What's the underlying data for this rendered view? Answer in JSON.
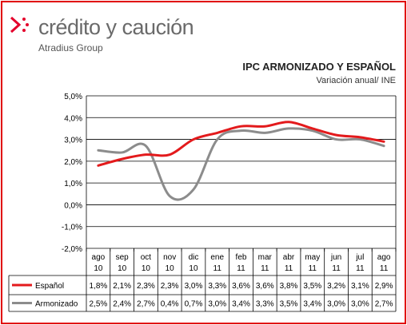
{
  "brand": {
    "name": "crédito y caución",
    "group": "Atradius Group",
    "color": "#e4002b"
  },
  "chart_data": {
    "type": "line",
    "title": "IPC ARMONIZADO Y ESPAÑOL",
    "subtitle": "Variación anual/ INE",
    "categories": [
      [
        "ago",
        "10"
      ],
      [
        "sep",
        "10"
      ],
      [
        "oct",
        "10"
      ],
      [
        "nov",
        "10"
      ],
      [
        "dic",
        "10"
      ],
      [
        "ene",
        "11"
      ],
      [
        "feb",
        "11"
      ],
      [
        "mar",
        "11"
      ],
      [
        "abr",
        "11"
      ],
      [
        "may",
        "11"
      ],
      [
        "jun",
        "11"
      ],
      [
        "jul",
        "11"
      ],
      [
        "ago",
        "11"
      ]
    ],
    "ylim": [
      -2,
      5
    ],
    "yticks": [
      -2,
      -1,
      0,
      1,
      2,
      3,
      4,
      5
    ],
    "ytick_labels": [
      "-2,0%",
      "-1,0%",
      "0,0%",
      "1,0%",
      "2,0%",
      "3,0%",
      "4,0%",
      "5,0%"
    ],
    "grid": true,
    "legend": "table-below",
    "series": [
      {
        "name": "Español",
        "color": "#e31a1c",
        "values": [
          1.8,
          2.1,
          2.3,
          2.3,
          3.0,
          3.3,
          3.6,
          3.6,
          3.8,
          3.5,
          3.2,
          3.1,
          2.9
        ],
        "labels": [
          "1,8%",
          "2,1%",
          "2,3%",
          "2,3%",
          "3,0%",
          "3,3%",
          "3,6%",
          "3,6%",
          "3,8%",
          "3,5%",
          "3,2%",
          "3,1%",
          "2,9%"
        ]
      },
      {
        "name": "Armonizado",
        "color": "#8c8c8c",
        "values": [
          2.5,
          2.4,
          2.7,
          0.4,
          0.7,
          3.0,
          3.4,
          3.3,
          3.5,
          3.4,
          3.0,
          3.0,
          2.7
        ],
        "labels": [
          "2,5%",
          "2,4%",
          "2,7%",
          "0,4%",
          "0,7%",
          "3,0%",
          "3,4%",
          "3,3%",
          "3,5%",
          "3,4%",
          "3,0%",
          "3,0%",
          "2,7%"
        ]
      }
    ]
  }
}
